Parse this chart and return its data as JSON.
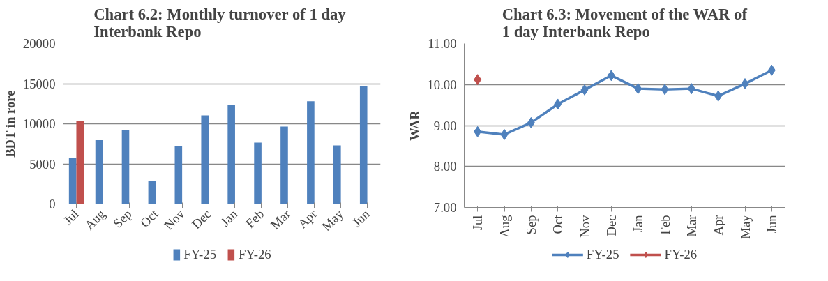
{
  "chart_data": [
    {
      "type": "bar",
      "title": "Chart 6.2: Monthly turnover of  1 day\nInterbank Repo",
      "ylabel": "BDT in rore",
      "categories": [
        "Jul",
        "Aug",
        "Sep",
        "Oct",
        "Nov",
        "Dec",
        "Jan",
        "Feb",
        "Mar",
        "Apr",
        "May",
        "Jun"
      ],
      "series": [
        {
          "name": "FY-25",
          "color": "#4f81bd",
          "values": [
            5700,
            7950,
            9200,
            2900,
            7250,
            11050,
            12300,
            7650,
            9650,
            12800,
            7300,
            14700
          ]
        },
        {
          "name": "FY-26",
          "color": "#c0504d",
          "values": [
            10400,
            null,
            null,
            null,
            null,
            null,
            null,
            null,
            null,
            null,
            null,
            null
          ]
        }
      ],
      "ylim": [
        0,
        20000
      ],
      "yticks": [
        0,
        5000,
        10000,
        15000,
        20000
      ],
      "grid": "y",
      "legend": "bottom"
    },
    {
      "type": "line",
      "title": "Chart 6.3: Movement of the WAR of\n1 day Interbank Repo",
      "ylabel": "WAR",
      "categories": [
        "Jul",
        "Aug",
        "Sep",
        "Oct",
        "Nov",
        "Dec",
        "Jan",
        "Feb",
        "Mar",
        "Apr",
        "May",
        "Jun"
      ],
      "series": [
        {
          "name": "FY-25",
          "color": "#4f81bd",
          "values": [
            8.85,
            8.78,
            9.07,
            9.52,
            9.87,
            10.22,
            9.9,
            9.88,
            9.9,
            9.72,
            10.02,
            10.35
          ]
        },
        {
          "name": "FY-26",
          "color": "#c0504d",
          "values": [
            10.12,
            null,
            null,
            null,
            null,
            null,
            null,
            null,
            null,
            null,
            null,
            null
          ]
        }
      ],
      "ylim": [
        7,
        11
      ],
      "yticks": [
        {
          "value": 7,
          "label": "7.00"
        },
        {
          "value": 8,
          "label": "8.00"
        },
        {
          "value": 9,
          "label": "9.00"
        },
        {
          "value": 10,
          "label": "10.00"
        },
        {
          "value": 11,
          "label": "11.00"
        }
      ],
      "grid": "y",
      "legend": "bottom",
      "marker": "diamond",
      "line_style": "solid"
    }
  ]
}
